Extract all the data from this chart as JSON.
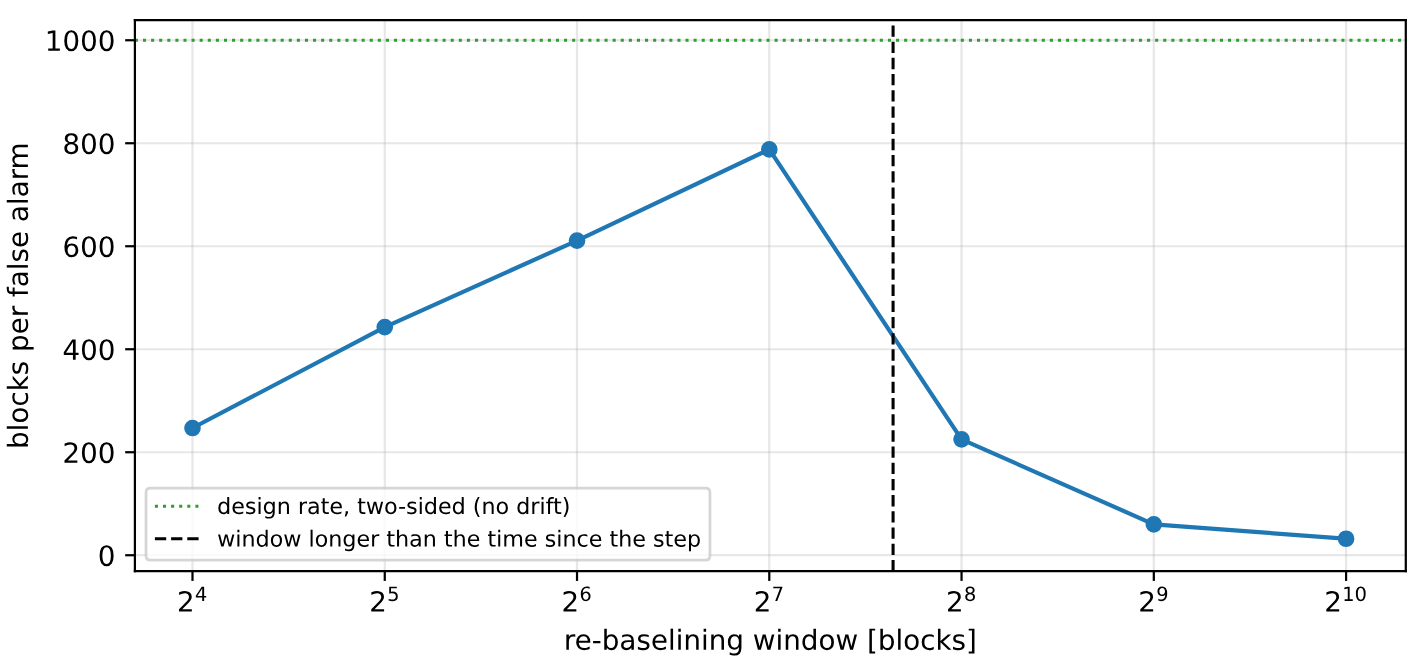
{
  "chart_data": {
    "type": "line",
    "xlabel": "re-baselining window [blocks]",
    "ylabel": "blocks per false alarm",
    "x": [
      16,
      32,
      64,
      128,
      256,
      512,
      1024
    ],
    "series": [
      {
        "color": "#1f77b4",
        "values": [
          247,
          443,
          611,
          788,
          225,
          60,
          32
        ]
      }
    ],
    "log": "x",
    "xlim": [
      13,
      1270
    ],
    "xticks": [
      {
        "value": 16,
        "label": "2$^{4}$"
      },
      {
        "value": 32,
        "label": "2$^{5}$"
      },
      {
        "value": 64,
        "label": "2$^{6}$"
      },
      {
        "value": 128,
        "label": "2$^{7}$"
      },
      {
        "value": 256,
        "label": "2$^{8}$"
      },
      {
        "value": 512,
        "label": "2$^{9}$"
      },
      {
        "value": 1024,
        "label": "2$^{10}$"
      }
    ],
    "ylim": [
      -31,
      1039
    ],
    "yticks": [
      0,
      200,
      400,
      600,
      800,
      1000
    ],
    "ref_lines": [
      {
        "axis": "y",
        "value": 1000,
        "label": "design rate, two-sided (no drift)",
        "color": "#2ca02c",
        "line_style": "dotted"
      },
      {
        "axis": "x",
        "value": 200,
        "label": "window longer than the time since the step",
        "color": "#000000",
        "line_style": "dashed"
      }
    ],
    "grid": true,
    "legend": "bottom left",
    "marker": "circle",
    "line_style": "solid"
  }
}
